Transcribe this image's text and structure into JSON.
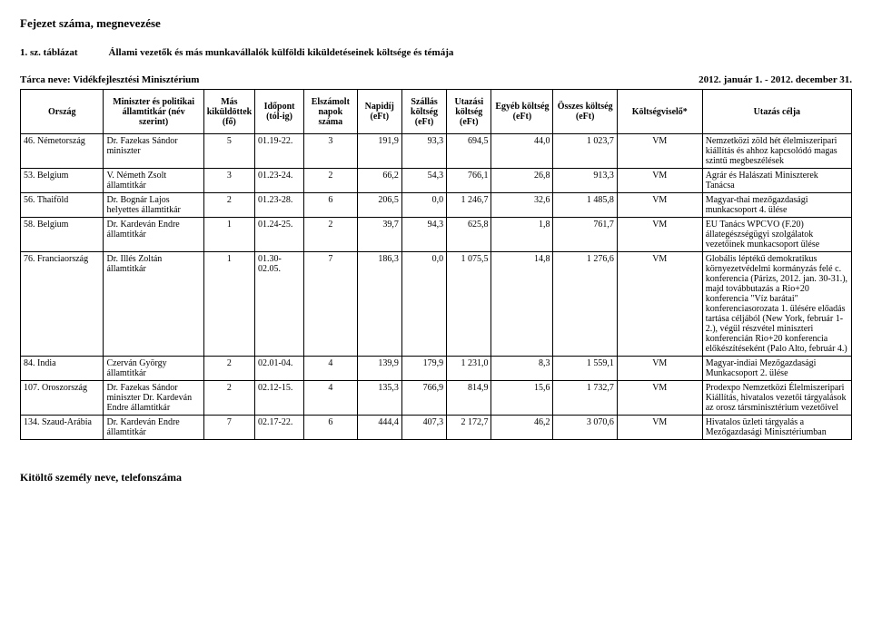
{
  "header": {
    "chapter": "Fejezet száma, megnevezése",
    "table_no": "1. sz. táblázat",
    "table_caption": "Állami vezetők és más munkavállalók külföldi kiküldetéseinek költsége és témája",
    "org": "Tárca neve: Vidékfejlesztési Minisztérium",
    "period": "2012. január 1. - 2012. december 31."
  },
  "columns": [
    "Ország",
    "Miniszter és politikai államtitkár (név szerint)",
    "Más kiküldöttek (fő)",
    "Időpont (tól-ig)",
    "Elszámolt napok száma",
    "Napidíj (eFt)",
    "Szállás költség (eFt)",
    "Utazási költség (eFt)",
    "Egyéb költség (eFt)",
    "Összes költség (eFt)",
    "Költségviselő*",
    "Utazás célja"
  ],
  "rows": [
    {
      "country": "46. Németország",
      "person": "Dr. Fazekas Sándor miniszter",
      "fo": "5",
      "date": "01.19-22.",
      "nap": "3",
      "napidij": "191,9",
      "szallas": "93,3",
      "utazasi": "694,5",
      "egyeb": "44,0",
      "osszes": "1 023,7",
      "viselo": "VM",
      "celja": "Nemzetközi zöld hét élelmiszeripari kiállítás és ahhoz kapcsolódó magas szintű megbeszélések"
    },
    {
      "country": "53. Belgium",
      "person": "V. Németh Zsolt államtitkár",
      "fo": "3",
      "date": "01.23-24.",
      "nap": "2",
      "napidij": "66,2",
      "szallas": "54,3",
      "utazasi": "766,1",
      "egyeb": "26,8",
      "osszes": "913,3",
      "viselo": "VM",
      "celja": "Agrár és Halászati Miniszterek Tanácsa"
    },
    {
      "country": "56. Thaiföld",
      "person": "Dr. Bognár Lajos helyettes államtitkár",
      "fo": "2",
      "date": "01.23-28.",
      "nap": "6",
      "napidij": "206,5",
      "szallas": "0,0",
      "utazasi": "1 246,7",
      "egyeb": "32,6",
      "osszes": "1 485,8",
      "viselo": "VM",
      "celja": "Magyar-thai mezőgazdasági munkacsoport 4. ülése"
    },
    {
      "country": "58. Belgium",
      "person": "Dr. Kardeván Endre államtitkár",
      "fo": "1",
      "date": "01.24-25.",
      "nap": "2",
      "napidij": "39,7",
      "szallas": "94,3",
      "utazasi": "625,8",
      "egyeb": "1,8",
      "osszes": "761,7",
      "viselo": "VM",
      "celja": "EU Tanács WPCVO (F.20) állategészségügyi szolgálatok vezetőinek munkacsoport ülése"
    },
    {
      "country": "76. Franciaország",
      "person": "Dr. Illés Zoltán államtitkár",
      "fo": "1",
      "date": "01.30-02.05.",
      "nap": "7",
      "napidij": "186,3",
      "szallas": "0,0",
      "utazasi": "1 075,5",
      "egyeb": "14,8",
      "osszes": "1 276,6",
      "viselo": "VM",
      "celja": "Globális léptékű demokratikus környezetvédelmi kormányzás felé c. konferencia (Párizs, 2012. jan. 30-31.), majd továbbutazás a Rio+20 konferencia \"Víz barátai\" konferenciasorozata 1. ülésére előadás tartása céljából (New York, február 1-2.), végül részvétel miniszteri konferencián Rio+20 konferencia előkészítéseként (Palo Alto, február 4.)"
    },
    {
      "country": "84. India",
      "person": "Czerván György államtitkár",
      "fo": "2",
      "date": "02.01-04.",
      "nap": "4",
      "napidij": "139,9",
      "szallas": "179,9",
      "utazasi": "1 231,0",
      "egyeb": "8,3",
      "osszes": "1 559,1",
      "viselo": "VM",
      "celja": "Magyar-indiai Mezőgazdasági Munkacsoport 2. ülése"
    },
    {
      "country": "107. Oroszország",
      "person": "Dr. Fazekas Sándor miniszter Dr. Kardeván Endre államtitkár",
      "fo": "2",
      "date": "02.12-15.",
      "nap": "4",
      "napidij": "135,3",
      "szallas": "766,9",
      "utazasi": "814,9",
      "egyeb": "15,6",
      "osszes": "1 732,7",
      "viselo": "VM",
      "celja": "Prodexpo Nemzetközi Élelmiszeripari Kiállítás, hivatalos vezetői tárgyalások az orosz társminisztérium vezetőivel"
    },
    {
      "country": "134. Szaud-Arábia",
      "person": "Dr. Kardeván Endre államtitkár",
      "fo": "7",
      "date": "02.17-22.",
      "nap": "6",
      "napidij": "444,4",
      "szallas": "407,3",
      "utazasi": "2 172,7",
      "egyeb": "46,2",
      "osszes": "3 070,6",
      "viselo": "VM",
      "celja": "Hivatalos üzleti tárgyalás a Mezőgazdasági Minisztériumban"
    }
  ],
  "footer": "Kitöltő személy neve, telefonszáma"
}
